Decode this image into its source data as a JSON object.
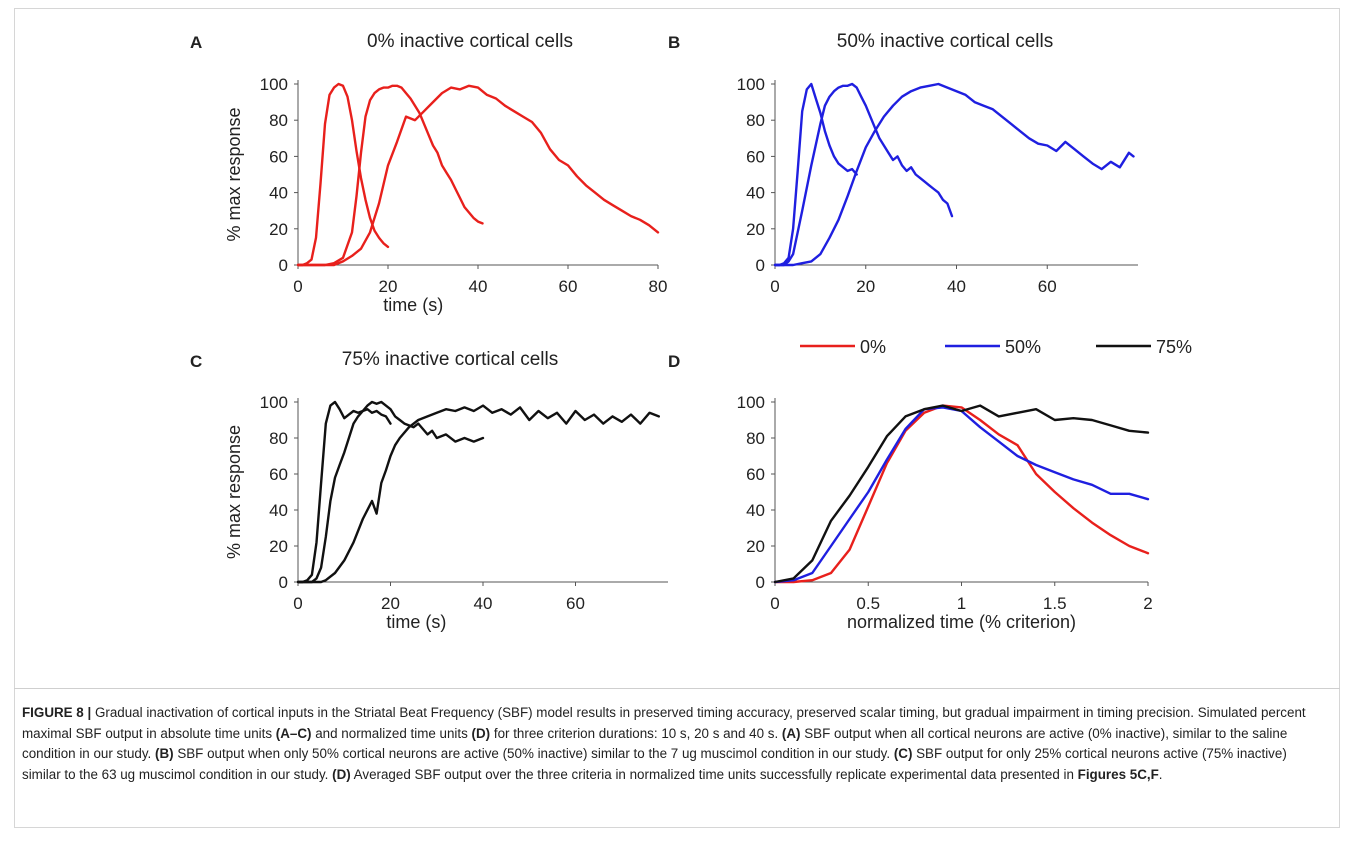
{
  "chart_data": [
    {
      "panel": "A",
      "type": "line",
      "title": "0% inactive cortical cells",
      "xlabel": "time (s)",
      "ylabel": "% max response",
      "xlim": [
        0,
        80
      ],
      "ylim": [
        0,
        100
      ],
      "xticks": [
        0,
        20,
        40,
        60,
        80
      ],
      "yticks": [
        0,
        20,
        40,
        60,
        80,
        100
      ],
      "color": "#e8201c",
      "series": [
        {
          "x": [
            0,
            1,
            2,
            3,
            4,
            5,
            6,
            7,
            8,
            9,
            10,
            11,
            12,
            13,
            14,
            15,
            16,
            17,
            18,
            19,
            20
          ],
          "y": [
            0,
            0,
            1,
            3,
            15,
            45,
            78,
            94,
            98,
            100,
            99,
            93,
            80,
            63,
            48,
            36,
            26,
            19,
            15,
            12,
            10
          ]
        },
        {
          "x": [
            0,
            2,
            4,
            6,
            8,
            10,
            12,
            13,
            14,
            15,
            16,
            17,
            18,
            19,
            20,
            21,
            22,
            23,
            24,
            25,
            26,
            27,
            28,
            29,
            30,
            31,
            32,
            33,
            34,
            35,
            36,
            37,
            38,
            39,
            40,
            41
          ],
          "y": [
            0,
            0,
            0,
            0,
            1,
            4,
            18,
            38,
            62,
            82,
            91,
            95,
            97,
            98,
            98,
            99,
            99,
            98,
            95,
            92,
            88,
            84,
            78,
            72,
            66,
            62,
            55,
            51,
            47,
            42,
            37,
            32,
            29,
            26,
            24,
            23
          ]
        },
        {
          "x": [
            0,
            5,
            8,
            10,
            12,
            14,
            16,
            18,
            20,
            22,
            24,
            26,
            28,
            30,
            32,
            34,
            36,
            38,
            40,
            42,
            44,
            46,
            48,
            50,
            52,
            54,
            56,
            58,
            60,
            62,
            64,
            66,
            68,
            70,
            72,
            74,
            76,
            78,
            80
          ],
          "y": [
            0,
            0,
            0,
            2,
            5,
            9,
            18,
            34,
            55,
            68,
            82,
            80,
            85,
            90,
            95,
            98,
            97,
            99,
            98,
            94,
            92,
            88,
            85,
            82,
            79,
            73,
            64,
            58,
            55,
            49,
            44,
            40,
            36,
            33,
            30,
            27,
            25,
            22,
            18
          ]
        }
      ]
    },
    {
      "panel": "B",
      "type": "line",
      "title": "50% inactive cortical cells",
      "xlabel": "",
      "ylabel": "",
      "xlim": [
        0,
        80
      ],
      "ylim": [
        0,
        100
      ],
      "xticks": [
        0,
        20,
        40,
        60
      ],
      "yticks": [
        0,
        20,
        40,
        60,
        80,
        100
      ],
      "color": "#1f1fe0",
      "series": [
        {
          "x": [
            0,
            1,
            2,
            3,
            4,
            5,
            6,
            7,
            8,
            9,
            10,
            11,
            12,
            13,
            14,
            15,
            16,
            17,
            18
          ],
          "y": [
            0,
            0,
            1,
            4,
            20,
            52,
            85,
            97,
            100,
            92,
            84,
            74,
            66,
            60,
            56,
            54,
            52,
            53,
            50
          ]
        },
        {
          "x": [
            0,
            2,
            3,
            4,
            6,
            8,
            10,
            11,
            12,
            13,
            14,
            15,
            16,
            17,
            18,
            19,
            20,
            21,
            22,
            23,
            24,
            25,
            26,
            27,
            28,
            29,
            30,
            31,
            32,
            33,
            34,
            35,
            36,
            37,
            38,
            39
          ],
          "y": [
            0,
            0,
            2,
            6,
            30,
            55,
            78,
            88,
            93,
            96,
            98,
            99,
            99,
            100,
            98,
            93,
            88,
            82,
            76,
            70,
            66,
            62,
            58,
            60,
            55,
            52,
            54,
            50,
            48,
            46,
            44,
            42,
            40,
            36,
            34,
            27
          ]
        },
        {
          "x": [
            0,
            4,
            6,
            8,
            10,
            12,
            14,
            16,
            18,
            20,
            22,
            24,
            26,
            28,
            30,
            32,
            34,
            36,
            38,
            40,
            42,
            44,
            46,
            48,
            50,
            52,
            54,
            56,
            58,
            60,
            62,
            64,
            66,
            68,
            70,
            72,
            74,
            76,
            78,
            79
          ],
          "y": [
            0,
            0,
            1,
            2,
            6,
            15,
            25,
            38,
            52,
            65,
            74,
            82,
            88,
            93,
            96,
            98,
            99,
            100,
            98,
            96,
            94,
            90,
            88,
            86,
            82,
            78,
            74,
            70,
            67,
            66,
            63,
            68,
            64,
            60,
            56,
            53,
            57,
            54,
            62,
            60
          ]
        }
      ]
    },
    {
      "panel": "C",
      "type": "line",
      "title": "75% inactive cortical cells",
      "xlabel": "time (s)",
      "ylabel": "% max response",
      "xlim": [
        0,
        80
      ],
      "ylim": [
        0,
        100
      ],
      "xticks": [
        0,
        20,
        40,
        60
      ],
      "yticks": [
        0,
        20,
        40,
        60,
        80,
        100
      ],
      "color": "#111111",
      "series": [
        {
          "x": [
            0,
            1,
            2,
            3,
            4,
            5,
            6,
            7,
            8,
            9,
            10,
            11,
            12,
            13,
            14,
            15,
            16,
            17,
            18,
            19,
            20
          ],
          "y": [
            0,
            0,
            1,
            4,
            22,
            55,
            88,
            98,
            100,
            96,
            91,
            93,
            95,
            94,
            95,
            96,
            94,
            95,
            93,
            92,
            88
          ]
        },
        {
          "x": [
            0,
            2,
            3,
            4,
            5,
            6,
            7,
            8,
            9,
            10,
            11,
            12,
            13,
            14,
            15,
            16,
            17,
            18,
            19,
            20,
            21,
            22,
            23,
            24,
            25,
            26,
            27,
            28,
            29,
            30,
            32,
            34,
            36,
            38,
            40
          ],
          "y": [
            0,
            0,
            0,
            2,
            8,
            25,
            45,
            58,
            65,
            72,
            80,
            88,
            92,
            95,
            98,
            100,
            99,
            100,
            98,
            96,
            92,
            90,
            88,
            87,
            86,
            88,
            85,
            82,
            84,
            80,
            82,
            78,
            80,
            78,
            80
          ]
        },
        {
          "x": [
            0,
            5,
            6,
            8,
            10,
            12,
            14,
            16,
            17,
            18,
            19,
            20,
            21,
            22,
            24,
            26,
            28,
            30,
            32,
            34,
            36,
            38,
            40,
            42,
            44,
            46,
            48,
            50,
            52,
            54,
            56,
            58,
            60,
            62,
            64,
            66,
            68,
            70,
            72,
            74,
            76,
            78
          ],
          "y": [
            0,
            0,
            1,
            5,
            12,
            22,
            35,
            45,
            38,
            55,
            62,
            70,
            76,
            80,
            86,
            90,
            92,
            94,
            96,
            95,
            97,
            95,
            98,
            94,
            96,
            93,
            97,
            90,
            95,
            91,
            94,
            88,
            95,
            90,
            93,
            88,
            92,
            89,
            93,
            88,
            94,
            92
          ]
        }
      ]
    },
    {
      "panel": "D",
      "type": "line",
      "title": "",
      "xlabel": "normalized time (% criterion)",
      "ylabel": "",
      "xlim": [
        0,
        2
      ],
      "ylim": [
        0,
        100
      ],
      "xticks": [
        0,
        0.5,
        1,
        1.5,
        2
      ],
      "yticks": [
        0,
        20,
        40,
        60,
        80,
        100
      ],
      "legend": "top",
      "series": [
        {
          "name": "0%",
          "color": "#e8201c",
          "x": [
            0,
            0.1,
            0.2,
            0.3,
            0.4,
            0.5,
            0.6,
            0.7,
            0.8,
            0.9,
            1.0,
            1.1,
            1.2,
            1.3,
            1.4,
            1.5,
            1.6,
            1.7,
            1.8,
            1.9,
            2.0
          ],
          "y": [
            0,
            0,
            1,
            5,
            18,
            42,
            66,
            84,
            94,
            98,
            97,
            90,
            82,
            76,
            60,
            50,
            41,
            33,
            26,
            20,
            16
          ]
        },
        {
          "name": "50%",
          "color": "#1f1fe0",
          "x": [
            0,
            0.1,
            0.2,
            0.3,
            0.4,
            0.5,
            0.6,
            0.7,
            0.8,
            0.9,
            1.0,
            1.1,
            1.2,
            1.3,
            1.4,
            1.5,
            1.6,
            1.7,
            1.8,
            1.9,
            2.0
          ],
          "y": [
            0,
            1,
            5,
            20,
            35,
            50,
            68,
            85,
            96,
            97,
            95,
            86,
            78,
            70,
            65,
            61,
            57,
            54,
            49,
            49,
            46
          ]
        },
        {
          "name": "75%",
          "color": "#111111",
          "x": [
            0,
            0.1,
            0.2,
            0.3,
            0.4,
            0.5,
            0.6,
            0.7,
            0.8,
            0.9,
            1.0,
            1.1,
            1.2,
            1.3,
            1.4,
            1.5,
            1.6,
            1.7,
            1.8,
            1.9,
            2.0
          ],
          "y": [
            0,
            2,
            12,
            34,
            48,
            64,
            81,
            92,
            96,
            98,
            95,
            98,
            92,
            94,
            96,
            90,
            91,
            90,
            87,
            84,
            83
          ]
        }
      ]
    }
  ],
  "caption": {
    "label": "FIGURE 8 |",
    "p1": " Gradual inactivation of cortical inputs in the Striatal Beat Frequency (SBF) model results in preserved timing accuracy, preserved scalar timing, but gradual impairment in timing precision. Simulated percent maximal SBF output in absolute time units ",
    "r1": "(A–C)",
    "p2": " and normalized time units ",
    "r2": "(D)",
    "p3": " for three criterion durations: 10 s, 20 s and 40 s. ",
    "r3": "(A)",
    "p4": " SBF output when all cortical neurons are active (0% inactive), similar to the saline condition in our study. ",
    "r4": "(B)",
    "p5": " SBF output when only 50% cortical neurons are active (50% inactive) similar to the 7 ug muscimol condition in our study. ",
    "r5": "(C)",
    "p6": " SBF output for only 25% cortical neurons active (75% inactive) similar to the 63 ug muscimol condition in our study. ",
    "r6": "(D)",
    "p7": " Averaged SBF output over the three criteria in normalized time units successfully replicate experimental data presented in ",
    "r7": "Figures 5C,F",
    "p8": "."
  }
}
